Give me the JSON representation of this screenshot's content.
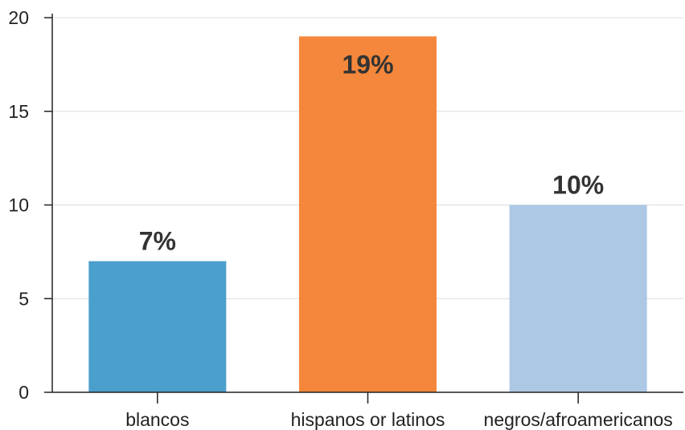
{
  "chart_data": {
    "type": "bar",
    "categories": [
      "blancos",
      "hispanos or latinos",
      "negros/afroamericanos"
    ],
    "values": [
      7,
      19,
      10
    ],
    "data_labels": [
      "7%",
      "19%",
      "10%"
    ],
    "colors": [
      "#4b9fcc",
      "#f4873b",
      "#adc8e4"
    ],
    "label_positions": [
      "outside",
      "inside",
      "outside"
    ],
    "ylim": [
      0,
      20
    ],
    "yticks": [
      0,
      5,
      10,
      15,
      20
    ],
    "grid": true,
    "title": "",
    "xlabel": "",
    "ylabel": ""
  }
}
